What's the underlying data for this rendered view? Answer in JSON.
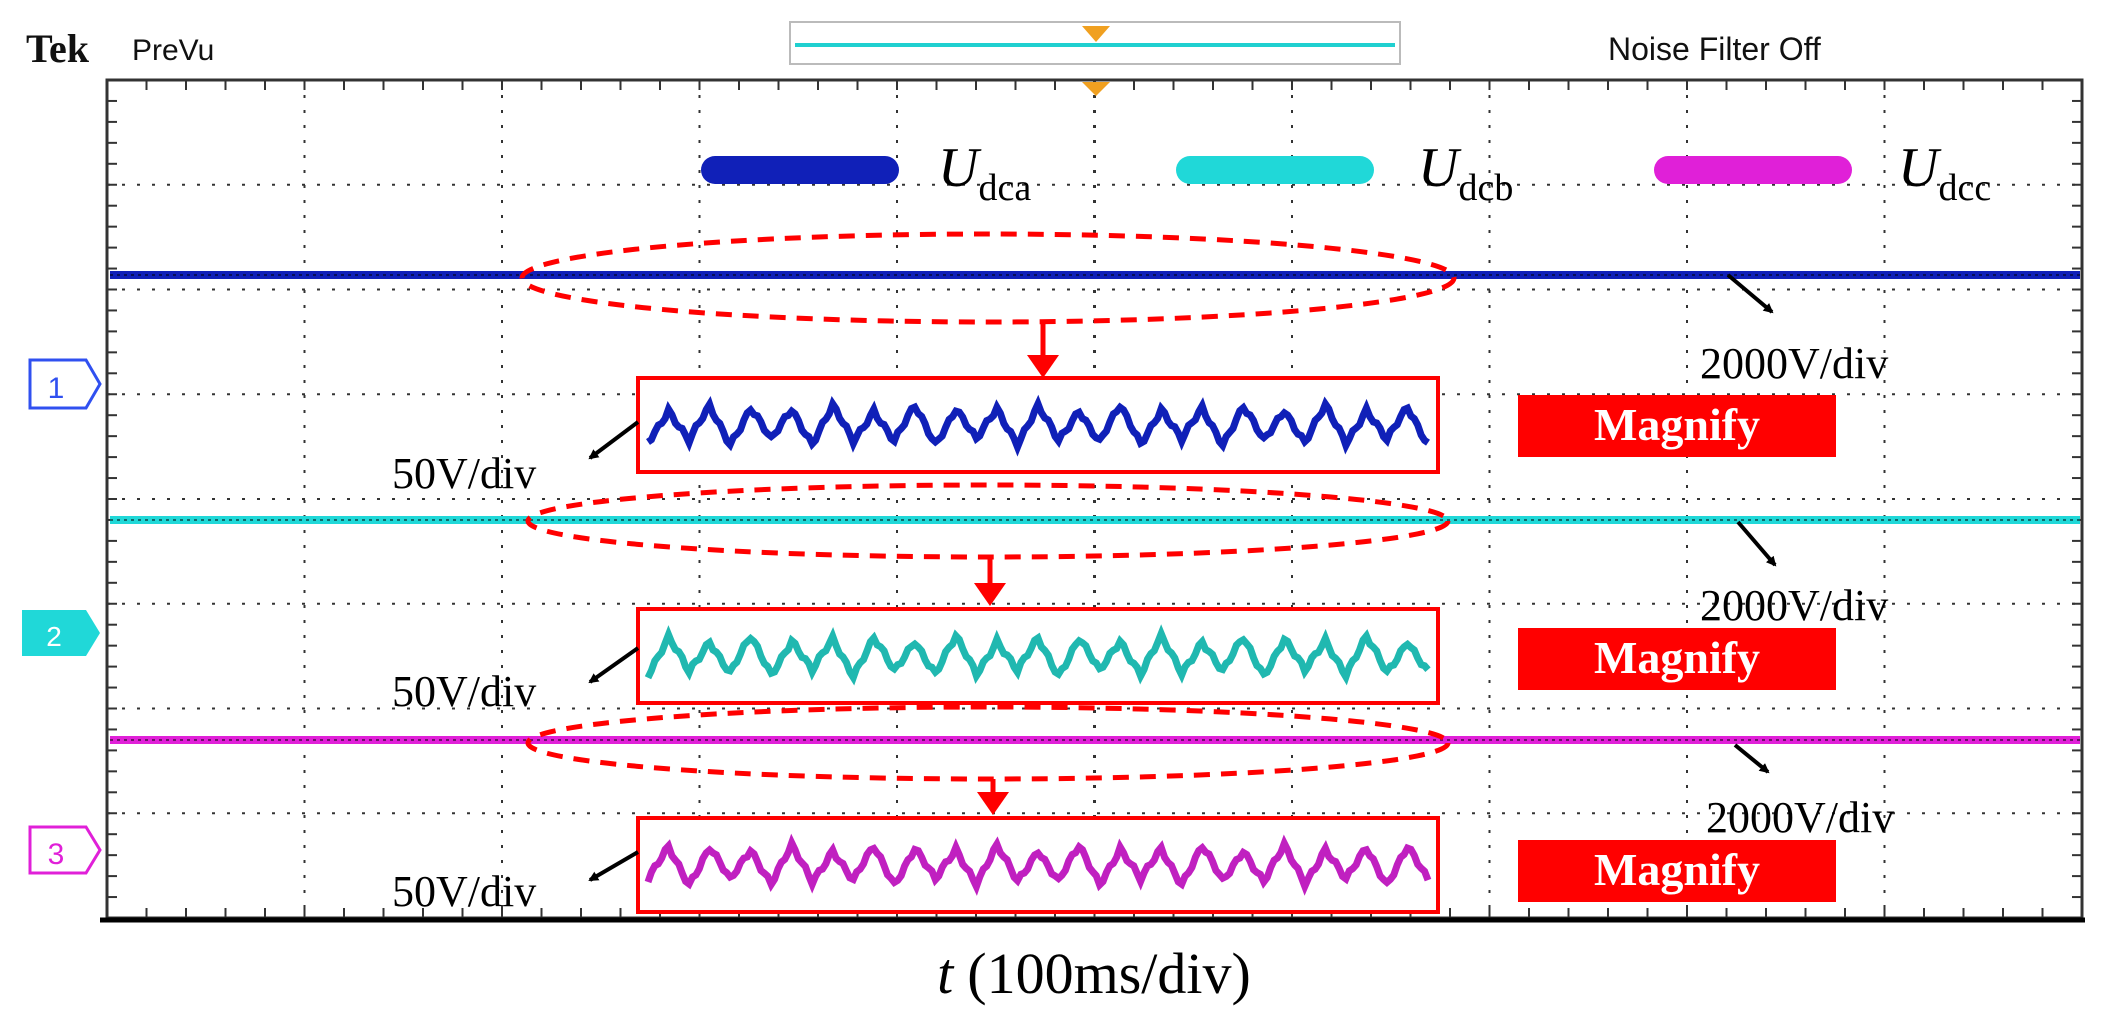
{
  "header": {
    "brand": "Tek",
    "mode": "PreVu",
    "status": "Noise Filter Off"
  },
  "colors": {
    "ch_a": "#1020b8",
    "ch_b": "#20d8d8",
    "ch_c": "#e020d8",
    "highlight": "#ff0000",
    "grid": "#333333"
  },
  "chart_data": {
    "type": "line",
    "title": "",
    "xlabel": "t (100ms/div)",
    "xlabel_var": "t",
    "xlabel_unit": "(100ms/div)",
    "x_divisions": 10,
    "y_divisions": 8,
    "legend_position": "top-right",
    "series": [
      {
        "name": "U_dca",
        "symbol": "U",
        "sub": "dca",
        "color": "#1020b8",
        "channel": "1",
        "scale": "2000V/div",
        "zoom_scale": "50V/div",
        "zoom_label": "Magnify",
        "waves": 19
      },
      {
        "name": "U_dcb",
        "symbol": "U",
        "sub": "dcb",
        "color": "#20d8d8",
        "channel": "2",
        "scale": "2000V/div",
        "zoom_scale": "50V/div",
        "zoom_label": "Magnify",
        "waves": 19
      },
      {
        "name": "U_dcc",
        "symbol": "U",
        "sub": "dcc",
        "color": "#e020d8",
        "channel": "3",
        "scale": "2000V/div",
        "zoom_scale": "50V/div",
        "zoom_label": "Magnify",
        "waves": 19
      }
    ]
  }
}
